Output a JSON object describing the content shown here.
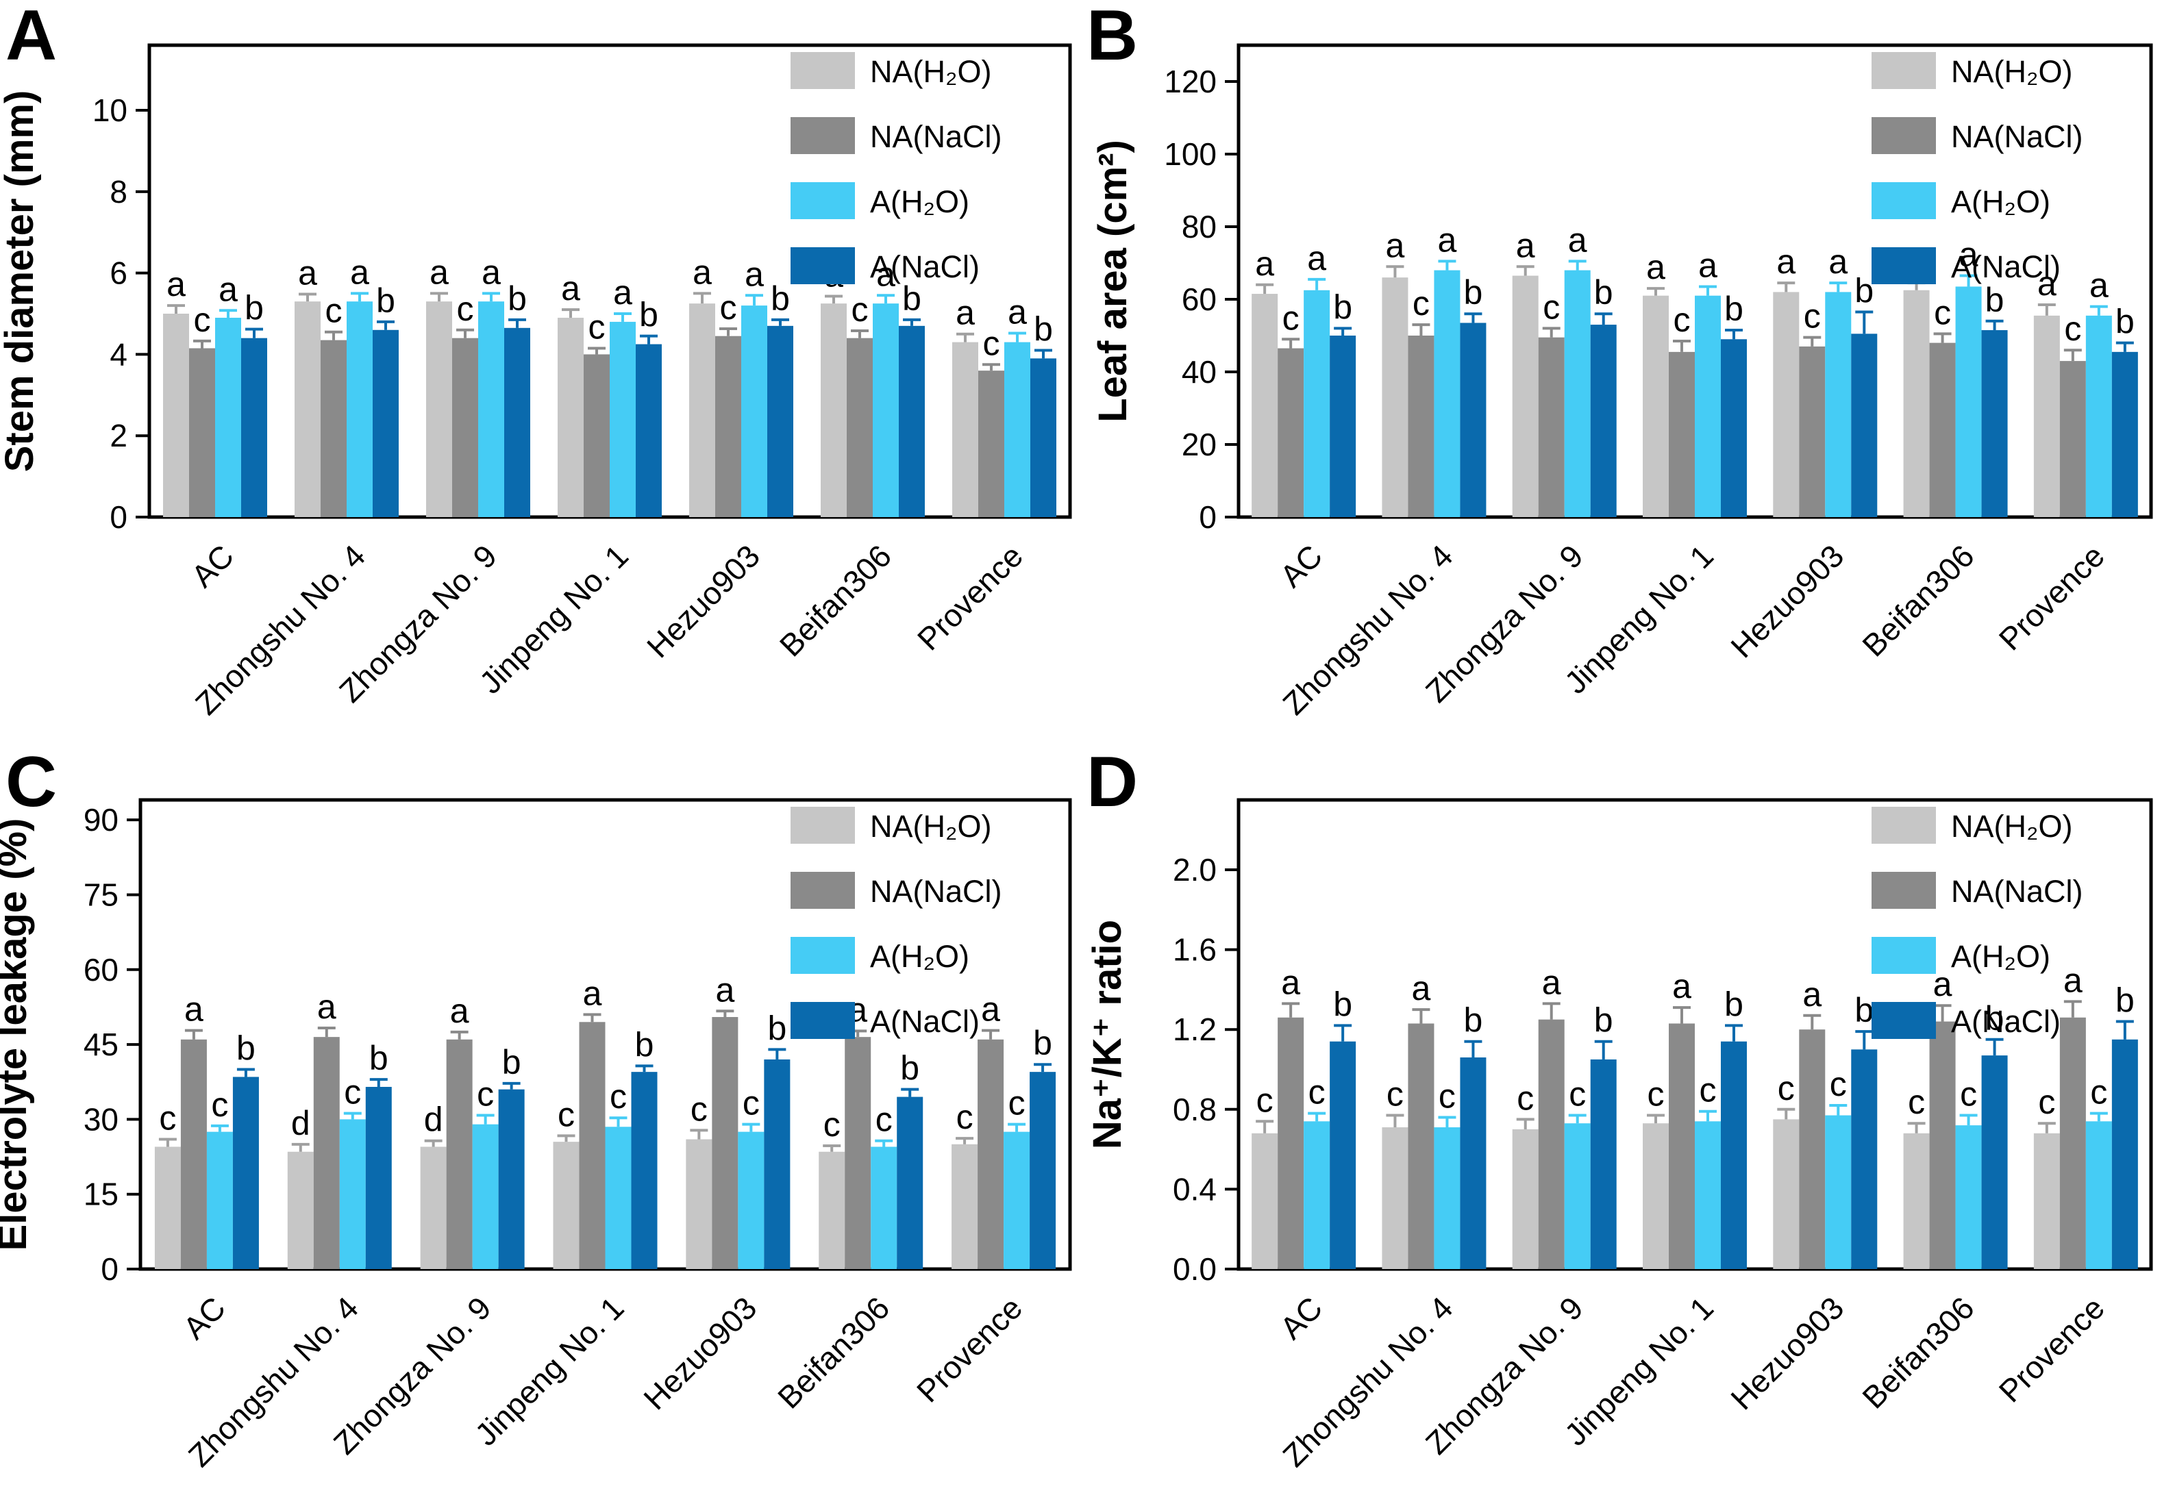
{
  "figure_title": "",
  "colors": {
    "na_h2o": "#c6c6c6",
    "na_nacl": "#8a8a8a",
    "a_h2o": "#45ccf5",
    "a_nacl": "#0a6aad",
    "axis": "#000000",
    "background": "#ffffff"
  },
  "chart_data": [
    {
      "panel_label": "A",
      "type": "bar",
      "title": "",
      "xlabel": "",
      "ylabel": "Stem diameter (mm)",
      "ylim": [
        0,
        11.6
      ],
      "yticks": [
        0,
        2,
        4,
        6,
        8,
        10
      ],
      "ytick_labels": [
        "0",
        "2",
        "4",
        "6",
        "8",
        "10"
      ],
      "grid": false,
      "legend_position": "top-right",
      "categories": [
        "AC",
        "Zhongshu No. 4",
        "Zhongza No. 9",
        "Jinpeng No. 1",
        "Hezuo903",
        "Beifan306",
        "Provence"
      ],
      "series": [
        {
          "name": "NA(H₂O)",
          "color": "#c6c6c6",
          "err_color": "#a0a0a0",
          "values": [
            5.0,
            5.3,
            5.3,
            4.9,
            5.25,
            5.25,
            4.3
          ],
          "errors": [
            0.2,
            0.18,
            0.2,
            0.2,
            0.25,
            0.18,
            0.2
          ],
          "letters": [
            "a",
            "a",
            "a",
            "a",
            "a",
            "a",
            "a"
          ]
        },
        {
          "name": "NA(NaCl)",
          "color": "#8a8a8a",
          "err_color": "#8a8a8a",
          "values": [
            4.15,
            4.35,
            4.4,
            4.0,
            4.45,
            4.4,
            3.6
          ],
          "errors": [
            0.18,
            0.2,
            0.2,
            0.15,
            0.18,
            0.18,
            0.15
          ],
          "letters": [
            "c",
            "c",
            "c",
            "c",
            "c",
            "c",
            "c"
          ]
        },
        {
          "name": "A(H₂O)",
          "color": "#45ccf5",
          "err_color": "#45ccf5",
          "values": [
            4.9,
            5.3,
            5.3,
            4.8,
            5.2,
            5.25,
            4.3
          ],
          "errors": [
            0.18,
            0.2,
            0.2,
            0.2,
            0.25,
            0.2,
            0.22
          ],
          "letters": [
            "a",
            "a",
            "a",
            "a",
            "a",
            "a",
            "a"
          ]
        },
        {
          "name": "A(NaCl)",
          "color": "#0a6aad",
          "err_color": "#0a6aad",
          "values": [
            4.4,
            4.6,
            4.65,
            4.25,
            4.7,
            4.7,
            3.9
          ],
          "errors": [
            0.22,
            0.2,
            0.2,
            0.2,
            0.15,
            0.15,
            0.2
          ],
          "letters": [
            "b",
            "b",
            "b",
            "b",
            "b",
            "b",
            "b"
          ]
        }
      ]
    },
    {
      "panel_label": "B",
      "type": "bar",
      "title": "",
      "xlabel": "",
      "ylabel": "Leaf area (cm²)",
      "ylim": [
        0,
        130
      ],
      "yticks": [
        0,
        20,
        40,
        60,
        80,
        100,
        120
      ],
      "ytick_labels": [
        "0",
        "20",
        "40",
        "60",
        "80",
        "100",
        "120"
      ],
      "grid": false,
      "legend_position": "top-right",
      "categories": [
        "AC",
        "Zhongshu No. 4",
        "Zhongza No. 9",
        "Jinpeng No. 1",
        "Hezuo903",
        "Beifan306",
        "Provence"
      ],
      "series": [
        {
          "name": "NA(H₂O)",
          "color": "#c6c6c6",
          "err_color": "#a0a0a0",
          "values": [
            61.5,
            66,
            66.5,
            61,
            62,
            62.5,
            55.5
          ],
          "errors": [
            2.5,
            3,
            2.5,
            2,
            2.5,
            2,
            3
          ],
          "letters": [
            "a",
            "a",
            "a",
            "a",
            "a",
            "a",
            "a"
          ]
        },
        {
          "name": "NA(NaCl)",
          "color": "#8a8a8a",
          "err_color": "#8a8a8a",
          "values": [
            46.5,
            50,
            49.5,
            45.5,
            47,
            48,
            43
          ],
          "errors": [
            2.5,
            3,
            2.5,
            3,
            2.5,
            2.5,
            3
          ],
          "letters": [
            "c",
            "c",
            "c",
            "c",
            "c",
            "c",
            "c"
          ]
        },
        {
          "name": "A(H₂O)",
          "color": "#45ccf5",
          "err_color": "#45ccf5",
          "values": [
            62.5,
            68,
            68,
            61,
            62,
            63.5,
            55.5
          ],
          "errors": [
            3,
            2.5,
            2.5,
            2.5,
            2.5,
            3,
            2.5
          ],
          "letters": [
            "a",
            "a",
            "a",
            "a",
            "a",
            "a",
            "a"
          ]
        },
        {
          "name": "A(NaCl)",
          "color": "#0a6aad",
          "err_color": "#0a6aad",
          "values": [
            50,
            53.5,
            53,
            49,
            50.5,
            51.5,
            45.5
          ],
          "errors": [
            2,
            2.5,
            3,
            2.5,
            6,
            2.5,
            2.5
          ],
          "letters": [
            "b",
            "b",
            "b",
            "b",
            "b",
            "b",
            "b"
          ]
        }
      ]
    },
    {
      "panel_label": "C",
      "type": "bar",
      "title": "",
      "xlabel": "",
      "ylabel": "Electrolyte leakage (%)",
      "ylim": [
        0,
        94
      ],
      "yticks": [
        0,
        15,
        30,
        45,
        60,
        75,
        90
      ],
      "ytick_labels": [
        "0",
        "15",
        "30",
        "45",
        "60",
        "75",
        "90"
      ],
      "grid": false,
      "legend_position": "top-right",
      "categories": [
        "AC",
        "Zhongshu No. 4",
        "Zhongza No. 9",
        "Jinpeng No. 1",
        "Hezuo903",
        "Beifan306",
        "Provence"
      ],
      "series": [
        {
          "name": "NA(H₂O)",
          "color": "#c6c6c6",
          "err_color": "#a0a0a0",
          "values": [
            24.5,
            23.5,
            24.5,
            25.5,
            26,
            23.5,
            25
          ],
          "errors": [
            1.5,
            1.5,
            1.2,
            1.2,
            1.8,
            1.2,
            1.2
          ],
          "letters": [
            "c",
            "d",
            "d",
            "c",
            "c",
            "c",
            "c"
          ]
        },
        {
          "name": "NA(NaCl)",
          "color": "#8a8a8a",
          "err_color": "#8a8a8a",
          "values": [
            46,
            46.5,
            46,
            49.5,
            50.5,
            46.5,
            46
          ],
          "errors": [
            1.8,
            1.8,
            1.5,
            1.5,
            1.2,
            1.2,
            1.8
          ],
          "letters": [
            "a",
            "a",
            "a",
            "a",
            "a",
            "a",
            "a"
          ]
        },
        {
          "name": "A(H₂O)",
          "color": "#45ccf5",
          "err_color": "#45ccf5",
          "values": [
            27.5,
            30,
            29,
            28.5,
            27.5,
            24.5,
            27.5
          ],
          "errors": [
            1.2,
            1.2,
            1.8,
            1.8,
            1.5,
            1.2,
            1.5
          ],
          "letters": [
            "c",
            "c",
            "c",
            "c",
            "c",
            "c",
            "c"
          ]
        },
        {
          "name": "A(NaCl)",
          "color": "#0a6aad",
          "err_color": "#0a6aad",
          "values": [
            38.5,
            36.5,
            36,
            39.5,
            42,
            34.5,
            39.5
          ],
          "errors": [
            1.5,
            1.5,
            1.2,
            1.2,
            2,
            1.5,
            1.5
          ],
          "letters": [
            "b",
            "b",
            "b",
            "b",
            "b",
            "b",
            "b"
          ]
        }
      ]
    },
    {
      "panel_label": "D",
      "type": "bar",
      "title": "",
      "xlabel": "",
      "ylabel": "Na⁺/K⁺ ratio",
      "ylim": [
        0,
        2.35
      ],
      "yticks": [
        0,
        0.4,
        0.8,
        1.2,
        1.6,
        2.0
      ],
      "ytick_labels": [
        "0.0",
        "0.4",
        "0.8",
        "1.2",
        "1.6",
        "2.0"
      ],
      "grid": false,
      "legend_position": "top-right",
      "categories": [
        "AC",
        "Zhongshu No. 4",
        "Zhongza No. 9",
        "Jinpeng No. 1",
        "Hezuo903",
        "Beifan306",
        "Provence"
      ],
      "series": [
        {
          "name": "NA(H₂O)",
          "color": "#c6c6c6",
          "err_color": "#a0a0a0",
          "values": [
            0.68,
            0.71,
            0.7,
            0.73,
            0.75,
            0.68,
            0.68
          ],
          "errors": [
            0.06,
            0.06,
            0.05,
            0.04,
            0.05,
            0.05,
            0.05
          ],
          "letters": [
            "c",
            "c",
            "c",
            "c",
            "c",
            "c",
            "c"
          ]
        },
        {
          "name": "NA(NaCl)",
          "color": "#8a8a8a",
          "err_color": "#8a8a8a",
          "values": [
            1.26,
            1.23,
            1.25,
            1.23,
            1.2,
            1.24,
            1.26
          ],
          "errors": [
            0.07,
            0.07,
            0.08,
            0.08,
            0.07,
            0.08,
            0.08
          ],
          "letters": [
            "a",
            "a",
            "a",
            "a",
            "a",
            "a",
            "a"
          ]
        },
        {
          "name": "A(H₂O)",
          "color": "#45ccf5",
          "err_color": "#45ccf5",
          "values": [
            0.74,
            0.71,
            0.73,
            0.74,
            0.77,
            0.72,
            0.74
          ],
          "errors": [
            0.04,
            0.05,
            0.04,
            0.05,
            0.05,
            0.05,
            0.04
          ],
          "letters": [
            "c",
            "c",
            "c",
            "c",
            "c",
            "c",
            "c"
          ]
        },
        {
          "name": "A(NaCl)",
          "color": "#0a6aad",
          "err_color": "#0a6aad",
          "values": [
            1.14,
            1.06,
            1.05,
            1.14,
            1.1,
            1.07,
            1.15
          ],
          "errors": [
            0.08,
            0.08,
            0.09,
            0.08,
            0.09,
            0.08,
            0.09
          ],
          "letters": [
            "b",
            "b",
            "b",
            "b",
            "b",
            "b",
            "b"
          ]
        }
      ]
    }
  ]
}
